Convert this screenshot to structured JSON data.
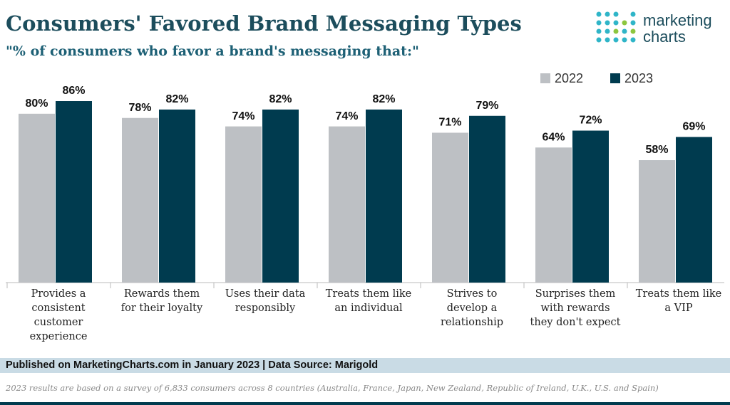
{
  "chart_data": {
    "type": "bar",
    "title": "Consumers' Favored Brand Messaging Types",
    "subtitle": "\"% of consumers who favor a brand's messaging that:\"",
    "categories": [
      "Provides a consistent customer experience",
      "Rewards them for their loyalty",
      "Uses their data responsibly",
      "Treats them like an individual",
      "Strives to develop a relationship",
      "Surprises them with rewards they don't expect",
      "Treats them like a VIP"
    ],
    "series": [
      {
        "name": "2022",
        "color": "#bdc0c4",
        "values": [
          80,
          78,
          74,
          74,
          71,
          64,
          58
        ],
        "value_labels": [
          "80%",
          "78%",
          "74%",
          "74%",
          "71%",
          "64%",
          "58%"
        ]
      },
      {
        "name": "2023",
        "color": "#003b4f",
        "values": [
          86,
          82,
          82,
          82,
          79,
          72,
          69
        ],
        "value_labels": [
          "86%",
          "82%",
          "82%",
          "82%",
          "79%",
          "72%",
          "69%"
        ]
      }
    ],
    "legend": "top-right"
  },
  "logo": [
    "marketing",
    "charts"
  ],
  "footer": "Published on MarketingCharts.com in January 2023 | Data Source: Marigold",
  "note": "2023 results are based on a survey of 6,833 consumers across 8 countries (Australia, France, Japan, New Zealand, Republic of Ireland, U.K., U.S. and Spain)"
}
